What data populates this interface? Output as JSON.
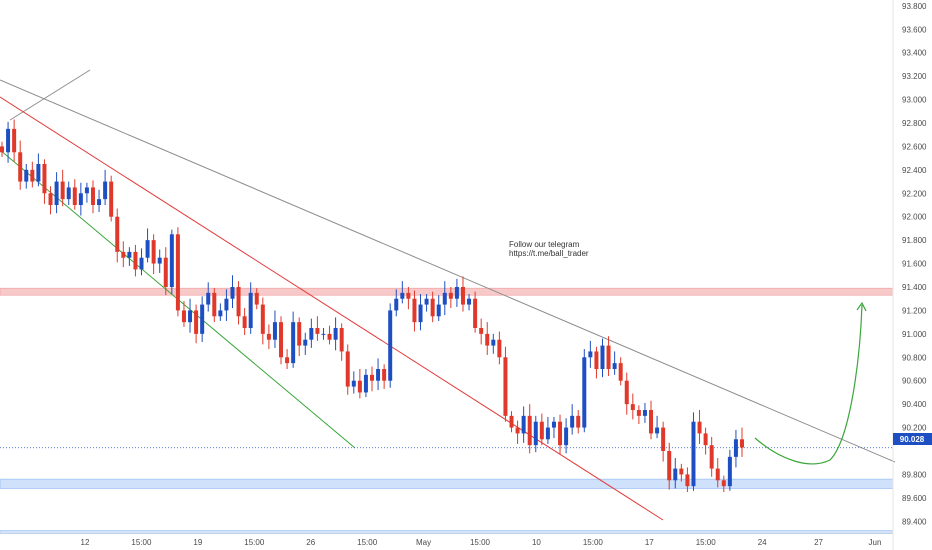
{
  "chart_data": {
    "type": "candlestick",
    "ylim": [
      89.3,
      93.85
    ],
    "y_ticks": [
      "93.800",
      "93.600",
      "93.400",
      "93.200",
      "93.000",
      "92.800",
      "92.600",
      "92.400",
      "92.200",
      "92.000",
      "91.800",
      "91.600",
      "91.400",
      "91.200",
      "91.000",
      "90.800",
      "90.600",
      "90.400",
      "90.200",
      "89.800",
      "89.600",
      "89.400"
    ],
    "x_ticks": [
      "12",
      "15:00",
      "19",
      "15:00",
      "26",
      "15:00",
      "May",
      "15:00",
      "10",
      "15:00",
      "17",
      "15:00",
      "24",
      "27",
      "Jun"
    ],
    "last_price": "90.028",
    "annotation": [
      "Follow our telegram",
      "https://t.me/ball_trader"
    ],
    "colors": {
      "up": "#1e4fc2",
      "down": "#e0392b",
      "price_line": "#1e4fc2",
      "resistance_zone": "#f8c9c9",
      "support_zone": "#cfe1fb",
      "trendline_grey": "#8c8c8c",
      "channel_red": "#e23b3b",
      "channel_green": "#3aa63a",
      "projection": "#3aa63a"
    },
    "zones": [
      {
        "kind": "resistance",
        "low": 91.33,
        "high": 91.39
      },
      {
        "kind": "support",
        "low": 89.68,
        "high": 89.76
      },
      {
        "kind": "support",
        "low": 89.3,
        "high": 89.32
      }
    ],
    "series": [
      {
        "kind": "close_path",
        "values": [
          92.55,
          92.75,
          92.55,
          92.3,
          92.4,
          92.3,
          92.45,
          92.2,
          92.1,
          92.3,
          92.15,
          92.25,
          92.1,
          92.2,
          92.25,
          92.1,
          92.15,
          92.3,
          92.0,
          91.7,
          91.65,
          91.7,
          91.55,
          91.65,
          91.8,
          91.6,
          91.65,
          91.4,
          91.85,
          91.2,
          91.1,
          91.2,
          91.0,
          91.25,
          91.35,
          91.15,
          91.2,
          91.3,
          91.4,
          91.15,
          91.05,
          91.35,
          91.25,
          91.0,
          90.95,
          91.1,
          90.8,
          90.75,
          91.1,
          90.9,
          90.95,
          91.05,
          91.0,
          91.0,
          90.95,
          91.05,
          90.85,
          90.55,
          90.6,
          90.5,
          90.65,
          90.6,
          90.7,
          90.6,
          91.2,
          91.3,
          91.35,
          91.3,
          91.1,
          91.25,
          91.3,
          91.15,
          91.25,
          91.35,
          91.3,
          91.4,
          91.25,
          91.3,
          91.05,
          91.0,
          90.9,
          90.95,
          90.8,
          90.3,
          90.2,
          90.15,
          90.3,
          90.05,
          90.25,
          90.1,
          90.2,
          90.25,
          90.05,
          90.2,
          90.3,
          90.2,
          90.8,
          90.85,
          90.7,
          90.9,
          90.7,
          90.75,
          90.6,
          90.4,
          90.35,
          90.3,
          90.35,
          90.15,
          90.2,
          90.0,
          89.75,
          89.85,
          89.8,
          89.7,
          90.25,
          90.15,
          90.05,
          89.85,
          89.75,
          89.7,
          89.95,
          90.1,
          90.03
        ]
      }
    ]
  }
}
